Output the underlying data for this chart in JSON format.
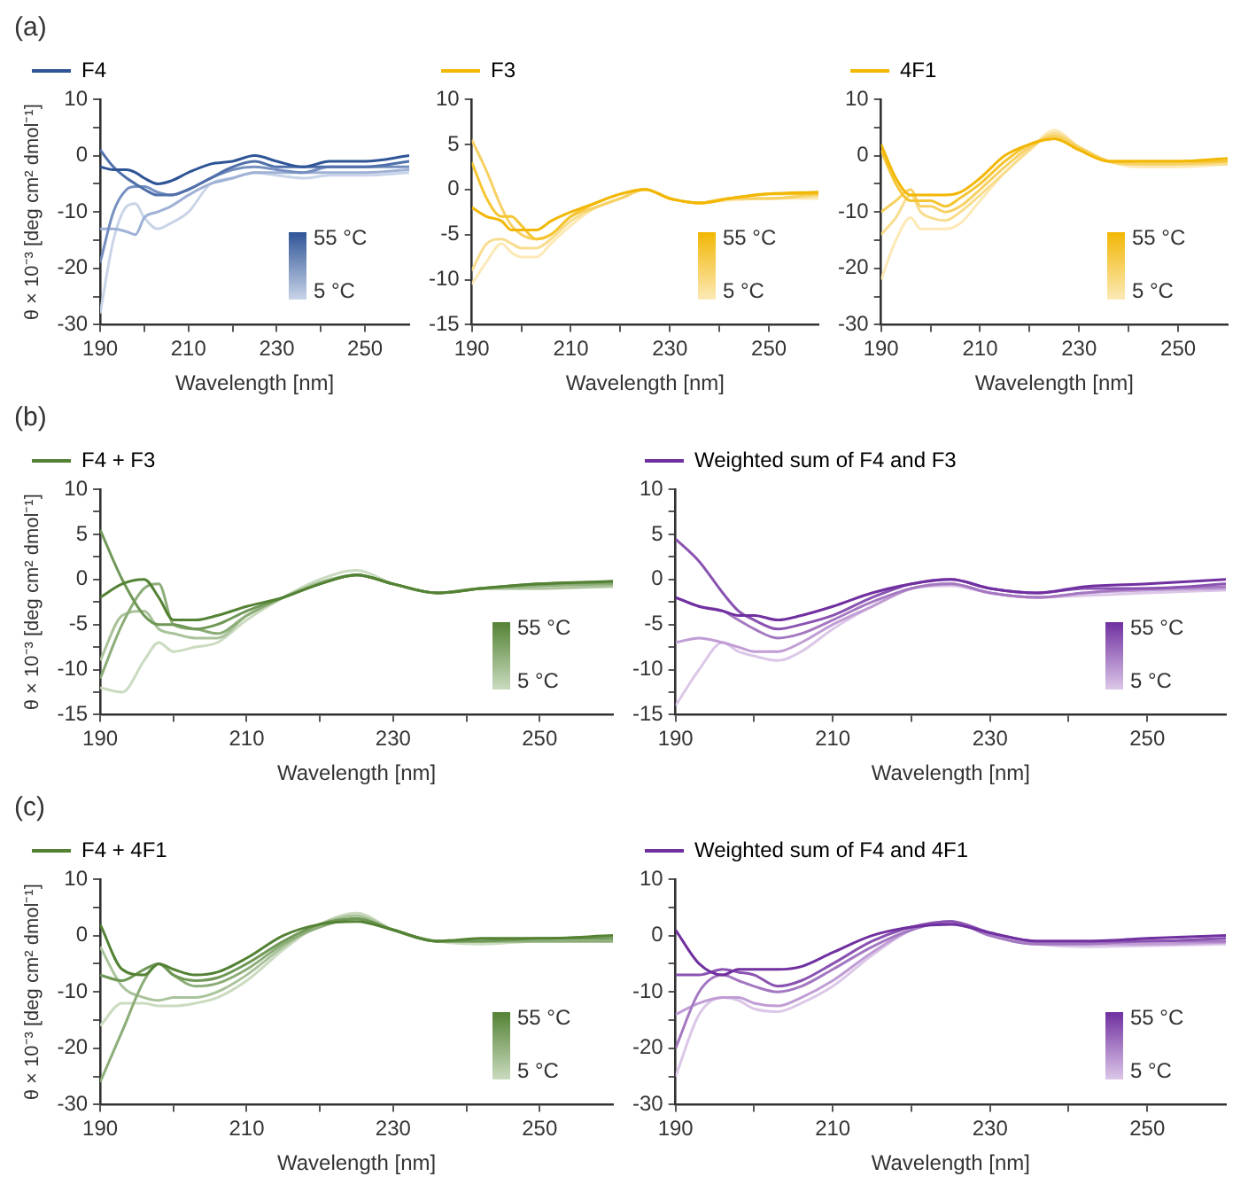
{
  "chart_data": [
    {
      "type": "line",
      "title": "(a)",
      "xlabel": "Wavelength [nm]",
      "ylabel": "θ × 10⁻³ [deg cm² dmol⁻¹]",
      "legend": "top left",
      "annotations": [
        "55 °C",
        "5 °C"
      ],
      "x": [
        190,
        193,
        196,
        198,
        200,
        203,
        206,
        210,
        215,
        220,
        225,
        230,
        236,
        242,
        250,
        260
      ],
      "xlim": [
        190,
        260
      ],
      "xticks": [
        190,
        {
          "value": 200,
          "label": null
        },
        210,
        {
          "value": 220,
          "label": null
        },
        230,
        {
          "value": 240,
          "label": null
        },
        250
      ],
      "ylim": [
        -30,
        10
      ],
      "yticks": [
        -30,
        {
          "value": -25,
          "label": null
        },
        -20,
        {
          "value": -15,
          "label": null
        },
        -10,
        {
          "value": -5,
          "label": null
        },
        0,
        {
          "value": 5,
          "label": null
        },
        10
      ],
      "series": [
        {
          "name": "F4",
          "color": "#2f5597",
          "values": [
            -2,
            -2.5,
            -2.5,
            -3,
            -4,
            -5,
            -4.5,
            -3,
            -1.5,
            -1,
            0,
            -1,
            -2,
            -1,
            -1,
            0
          ]
        },
        {
          "color": "#4f70aa",
          "values": [
            1,
            -2,
            -4,
            -5,
            -6,
            -7,
            -7,
            -6,
            -4,
            -2,
            -1,
            -2,
            -2,
            -2,
            -2,
            -1
          ]
        },
        {
          "color": "#7590c0",
          "values": [
            -19,
            -10,
            -6,
            -5.5,
            -5.5,
            -6.5,
            -7,
            -6,
            -4,
            -2.5,
            -2,
            -2.5,
            -3,
            -2,
            -2,
            -2
          ]
        },
        {
          "color": "#9fb2d5",
          "values": [
            -13,
            -13,
            -13.5,
            -14,
            -11,
            -10,
            -9,
            -7,
            -5,
            -4,
            -3,
            -3,
            -3,
            -3,
            -3,
            -2.5
          ]
        },
        {
          "color": "#c9d4e8",
          "values": [
            -28,
            -15,
            -9,
            -8.5,
            -11,
            -13,
            -12,
            -10,
            -5,
            -4,
            -3,
            -3.5,
            -4,
            -3.5,
            -3.5,
            -3
          ]
        }
      ]
    },
    {
      "type": "line",
      "xlabel": "Wavelength [nm]",
      "legend": "top left",
      "annotations": [
        "55 °C",
        "5 °C"
      ],
      "x": [
        190,
        193,
        196,
        198,
        200,
        203,
        206,
        210,
        215,
        220,
        225,
        230,
        236,
        242,
        250,
        260
      ],
      "xlim": [
        190,
        260
      ],
      "xticks": [
        190,
        {
          "value": 200,
          "label": null
        },
        210,
        {
          "value": 220,
          "label": null
        },
        230,
        {
          "value": 240,
          "label": null
        },
        250
      ],
      "ylim": [
        -15,
        10
      ],
      "yticks": [
        -15,
        -10,
        -5,
        0,
        5,
        10
      ],
      "series": [
        {
          "name": "F3",
          "color": "#f2b705",
          "values": [
            -2,
            -3,
            -3.5,
            -4.5,
            -4.5,
            -4.5,
            -3.5,
            -2.5,
            -1.5,
            -0.5,
            0,
            -1,
            -1.5,
            -1,
            -0.5,
            -0.3
          ]
        },
        {
          "color": "#f5c534",
          "values": [
            3,
            -1,
            -3,
            -3,
            -4,
            -5.5,
            -5,
            -3,
            -1.5,
            -0.5,
            0,
            -1,
            -1.5,
            -1,
            -0.5,
            -0.5
          ]
        },
        {
          "color": "#f7d163",
          "values": [
            5.5,
            2,
            -2,
            -4,
            -5,
            -5.5,
            -5,
            -3,
            -2,
            -1,
            0,
            -1,
            -1.5,
            -1,
            -1,
            -0.5
          ]
        },
        {
          "color": "#f9dd8e",
          "values": [
            -9,
            -6,
            -5.5,
            -6,
            -6.5,
            -6.5,
            -5.5,
            -3.5,
            -2,
            -1,
            0,
            -1,
            -1.5,
            -1,
            -1,
            -0.7
          ]
        },
        {
          "color": "#fce9b6",
          "values": [
            -10.5,
            -8,
            -6,
            -7,
            -7.5,
            -7.5,
            -6,
            -4,
            -2,
            -1,
            0,
            -1,
            -1.5,
            -1.2,
            -1,
            -1
          ]
        }
      ]
    },
    {
      "type": "line",
      "xlabel": "Wavelength [nm]",
      "legend": "top left",
      "annotations": [
        "55 °C",
        "5 °C"
      ],
      "x": [
        190,
        193,
        196,
        198,
        200,
        203,
        206,
        210,
        215,
        220,
        225,
        230,
        236,
        242,
        250,
        260
      ],
      "xlim": [
        190,
        260
      ],
      "xticks": [
        190,
        {
          "value": 200,
          "label": null
        },
        210,
        {
          "value": 220,
          "label": null
        },
        230,
        {
          "value": 240,
          "label": null
        },
        250
      ],
      "ylim": [
        -30,
        10
      ],
      "yticks": [
        -30,
        {
          "value": -25,
          "label": null
        },
        -20,
        {
          "value": -15,
          "label": null
        },
        -10,
        {
          "value": -5,
          "label": null
        },
        0,
        {
          "value": 5,
          "label": null
        },
        10
      ],
      "series": [
        {
          "name": "4F1",
          "color": "#f2b705",
          "values": [
            2,
            -4,
            -7,
            -7,
            -7,
            -7,
            -6.5,
            -4,
            0,
            2,
            3,
            1,
            -1,
            -1,
            -1,
            -0.5
          ]
        },
        {
          "color": "#f5c534",
          "values": [
            1,
            -5,
            -8,
            -8,
            -8,
            -9,
            -7.5,
            -5,
            -1,
            2,
            3,
            1,
            -1,
            -1,
            -1,
            -1
          ]
        },
        {
          "color": "#f7d163",
          "values": [
            -10,
            -8,
            -6,
            -9,
            -9,
            -10,
            -9,
            -6,
            -2,
            1.5,
            3.5,
            1.5,
            -1,
            -1.5,
            -1.5,
            -1
          ]
        },
        {
          "color": "#f9dd8e",
          "values": [
            -14,
            -11,
            -7,
            -10,
            -11,
            -11.5,
            -10,
            -7,
            -3,
            1,
            4,
            1.5,
            -1,
            -1.5,
            -1.5,
            -1.5
          ]
        },
        {
          "color": "#fce9b6",
          "values": [
            -22,
            -15,
            -11,
            -13,
            -13,
            -13,
            -12,
            -8,
            -3,
            1,
            4.5,
            1.5,
            -1,
            -2,
            -2,
            -1.5
          ]
        }
      ]
    },
    {
      "type": "line",
      "title": "(b)",
      "xlabel": "Wavelength [nm]",
      "ylabel": "θ × 10⁻³ [deg cm² dmol⁻¹]",
      "legend": "top left",
      "annotations": [
        "55 °C",
        "5 °C"
      ],
      "x": [
        190,
        193,
        196,
        198,
        200,
        203,
        206,
        210,
        215,
        220,
        225,
        230,
        236,
        242,
        250,
        260
      ],
      "xlim": [
        190,
        260
      ],
      "xticks": [
        190,
        {
          "value": 200,
          "label": null
        },
        210,
        {
          "value": 220,
          "label": null
        },
        230,
        {
          "value": 240,
          "label": null
        },
        250
      ],
      "ylim": [
        -15,
        10
      ],
      "yticks": [
        -15,
        {
          "value": -12.5,
          "label": null
        },
        -10,
        {
          "value": -7.5,
          "label": null
        },
        -5,
        {
          "value": -2.5,
          "label": null
        },
        0,
        {
          "value": 2.5,
          "label": null
        },
        5,
        {
          "value": 7.5,
          "label": null
        },
        10
      ],
      "series": [
        {
          "name": "F4 + F3",
          "color": "#548235",
          "values": [
            -2,
            -0.5,
            0,
            -2,
            -4.5,
            -4.5,
            -4,
            -3,
            -2,
            -0.5,
            0.5,
            -0.5,
            -1.5,
            -1,
            -0.5,
            -0.2
          ]
        },
        {
          "color": "#6f9755",
          "values": [
            5.5,
            0,
            -4,
            -5,
            -5,
            -5.5,
            -5,
            -3.5,
            -2,
            -0.5,
            0.5,
            -0.5,
            -1.5,
            -1,
            -0.5,
            -0.3
          ]
        },
        {
          "color": "#8cad78",
          "values": [
            -11,
            -5,
            -1,
            -0.5,
            -5,
            -5.5,
            -6,
            -4,
            -2,
            -0.5,
            0.5,
            -0.5,
            -1.5,
            -1,
            -0.7,
            -0.5
          ]
        },
        {
          "color": "#aac39b",
          "values": [
            -9,
            -4,
            -3.5,
            -5.5,
            -6,
            -6.5,
            -6.5,
            -4,
            -2,
            -0.3,
            0.5,
            -0.5,
            -1.5,
            -1,
            -1,
            -0.7
          ]
        },
        {
          "color": "#cadbbf",
          "values": [
            -12,
            -12.5,
            -9,
            -7,
            -8,
            -7.5,
            -7,
            -4.5,
            -2,
            0,
            1,
            -0.5,
            -1.5,
            -1,
            -1,
            -0.8
          ]
        }
      ]
    },
    {
      "type": "line",
      "xlabel": "Wavelength [nm]",
      "legend": "top left",
      "annotations": [
        "55 °C",
        "5 °C"
      ],
      "x": [
        190,
        193,
        196,
        198,
        200,
        203,
        206,
        210,
        215,
        220,
        225,
        230,
        236,
        242,
        250,
        260
      ],
      "xlim": [
        190,
        260
      ],
      "xticks": [
        190,
        {
          "value": 200,
          "label": null
        },
        210,
        {
          "value": 220,
          "label": null
        },
        230,
        {
          "value": 240,
          "label": null
        },
        250
      ],
      "ylim": [
        -15,
        10
      ],
      "yticks": [
        -15,
        {
          "value": -12.5,
          "label": null
        },
        -10,
        {
          "value": -7.5,
          "label": null
        },
        -5,
        {
          "value": -2.5,
          "label": null
        },
        0,
        {
          "value": 2.5,
          "label": null
        },
        5,
        {
          "value": 7.5,
          "label": null
        },
        10
      ],
      "series": [
        {
          "name": "Weighted sum of F4 and F3",
          "color": "#7030a0",
          "values": [
            -2,
            -3,
            -3.5,
            -4,
            -4,
            -4.5,
            -4,
            -3,
            -1.5,
            -0.5,
            0,
            -1,
            -1.5,
            -0.8,
            -0.5,
            0
          ]
        },
        {
          "color": "#8a53b1",
          "values": [
            4.5,
            2,
            -1.5,
            -3.5,
            -4.5,
            -5.5,
            -5,
            -4,
            -2,
            -0.5,
            0,
            -1,
            -1.5,
            -1,
            -1,
            -0.5
          ]
        },
        {
          "color": "#a578c2",
          "values": [
            -2,
            -3,
            -3.5,
            -4.5,
            -5.5,
            -6.5,
            -6,
            -4.5,
            -2.5,
            -1,
            -0.5,
            -1.5,
            -2,
            -1.5,
            -1,
            -0.8
          ]
        },
        {
          "color": "#c09dd4",
          "values": [
            -7,
            -6.5,
            -7,
            -7.5,
            -8,
            -8,
            -7,
            -5,
            -3,
            -1,
            -0.5,
            -1.5,
            -2,
            -1.5,
            -1.2,
            -1
          ]
        },
        {
          "color": "#dcc7e8",
          "values": [
            -14,
            -10,
            -7,
            -8,
            -8.5,
            -9,
            -8,
            -5.5,
            -3,
            -1,
            -0.7,
            -1.5,
            -2,
            -1.8,
            -1.5,
            -1.2
          ]
        }
      ]
    },
    {
      "type": "line",
      "title": "(c)",
      "xlabel": "Wavelength [nm]",
      "ylabel": "θ × 10⁻³ [deg cm² dmol⁻¹]",
      "legend": "top left",
      "annotations": [
        "55 °C",
        "5 °C"
      ],
      "x": [
        190,
        193,
        196,
        198,
        200,
        203,
        206,
        210,
        215,
        220,
        225,
        230,
        236,
        242,
        250,
        260
      ],
      "xlim": [
        190,
        260
      ],
      "xticks": [
        190,
        {
          "value": 200,
          "label": null
        },
        210,
        {
          "value": 220,
          "label": null
        },
        230,
        {
          "value": 240,
          "label": null
        },
        250
      ],
      "ylim": [
        -30,
        10
      ],
      "yticks": [
        -30,
        {
          "value": -25,
          "label": null
        },
        -20,
        {
          "value": -15,
          "label": null
        },
        -10,
        {
          "value": -5,
          "label": null
        },
        0,
        {
          "value": 5,
          "label": null
        },
        10
      ],
      "series": [
        {
          "name": "F4 + 4F1",
          "color": "#548235",
          "values": [
            2,
            -6,
            -7,
            -5,
            -6,
            -7,
            -6.5,
            -4,
            0,
            2,
            2.5,
            1,
            -1,
            -0.5,
            -0.5,
            0
          ]
        },
        {
          "color": "#6f9755",
          "values": [
            -7,
            -8,
            -6,
            -5,
            -7,
            -8,
            -7.5,
            -5,
            -1,
            2,
            3,
            1,
            -1,
            -1,
            -0.5,
            -0.5
          ]
        },
        {
          "color": "#8cad78",
          "values": [
            -26,
            -17,
            -8,
            -5,
            -7,
            -9,
            -8.5,
            -6,
            -1.5,
            1.5,
            3,
            1,
            -1,
            -1,
            -1,
            -1
          ]
        },
        {
          "color": "#aac39b",
          "values": [
            -2,
            -9,
            -11,
            -11.5,
            -11,
            -11,
            -10,
            -7,
            -2,
            2,
            3.5,
            1,
            -1,
            -1,
            -1,
            -1
          ]
        },
        {
          "color": "#cadbbf",
          "values": [
            -16,
            -12,
            -12,
            -12.5,
            -12.5,
            -12,
            -11,
            -8,
            -2.5,
            2,
            4,
            1,
            -1,
            -1.5,
            -1,
            -1
          ]
        }
      ]
    },
    {
      "type": "line",
      "xlabel": "Wavelength [nm]",
      "legend": "top left",
      "annotations": [
        "55 °C",
        "5 °C"
      ],
      "x": [
        190,
        193,
        196,
        198,
        200,
        203,
        206,
        210,
        215,
        220,
        225,
        230,
        236,
        242,
        250,
        260
      ],
      "xlim": [
        190,
        260
      ],
      "xticks": [
        190,
        {
          "value": 200,
          "label": null
        },
        210,
        {
          "value": 220,
          "label": null
        },
        230,
        {
          "value": 240,
          "label": null
        },
        250
      ],
      "ylim": [
        -30,
        10
      ],
      "yticks": [
        -30,
        {
          "value": -25,
          "label": null
        },
        -20,
        {
          "value": -15,
          "label": null
        },
        -10,
        {
          "value": -5,
          "label": null
        },
        0,
        {
          "value": 5,
          "label": null
        },
        10
      ],
      "series": [
        {
          "name": "Weighted sum of F4 and 4F1",
          "color": "#7030a0",
          "values": [
            1,
            -5,
            -7,
            -6,
            -6,
            -6,
            -5.5,
            -3,
            0,
            1.5,
            2,
            0.5,
            -1,
            -1,
            -0.5,
            0
          ]
        },
        {
          "color": "#8a53b1",
          "values": [
            -7,
            -7,
            -6,
            -6.5,
            -7,
            -9,
            -8,
            -5,
            -1,
            1.5,
            2.5,
            0.5,
            -1,
            -1,
            -1,
            -0.5
          ]
        },
        {
          "color": "#a578c2",
          "values": [
            -20,
            -10,
            -7,
            -8,
            -9,
            -10,
            -9,
            -6,
            -2,
            1,
            2.5,
            0,
            -1.5,
            -1.5,
            -1,
            -1
          ]
        },
        {
          "color": "#c09dd4",
          "values": [
            -14,
            -12,
            -11,
            -11,
            -12,
            -12.5,
            -11,
            -8,
            -3,
            1,
            2.5,
            0,
            -1.5,
            -1.5,
            -1.5,
            -1.2
          ]
        },
        {
          "color": "#dcc7e8",
          "values": [
            -25,
            -14,
            -11,
            -11.5,
            -13,
            -13.5,
            -12,
            -9,
            -3.5,
            1,
            2.5,
            0,
            -1.5,
            -2,
            -1.8,
            -1.5
          ]
        }
      ]
    }
  ]
}
